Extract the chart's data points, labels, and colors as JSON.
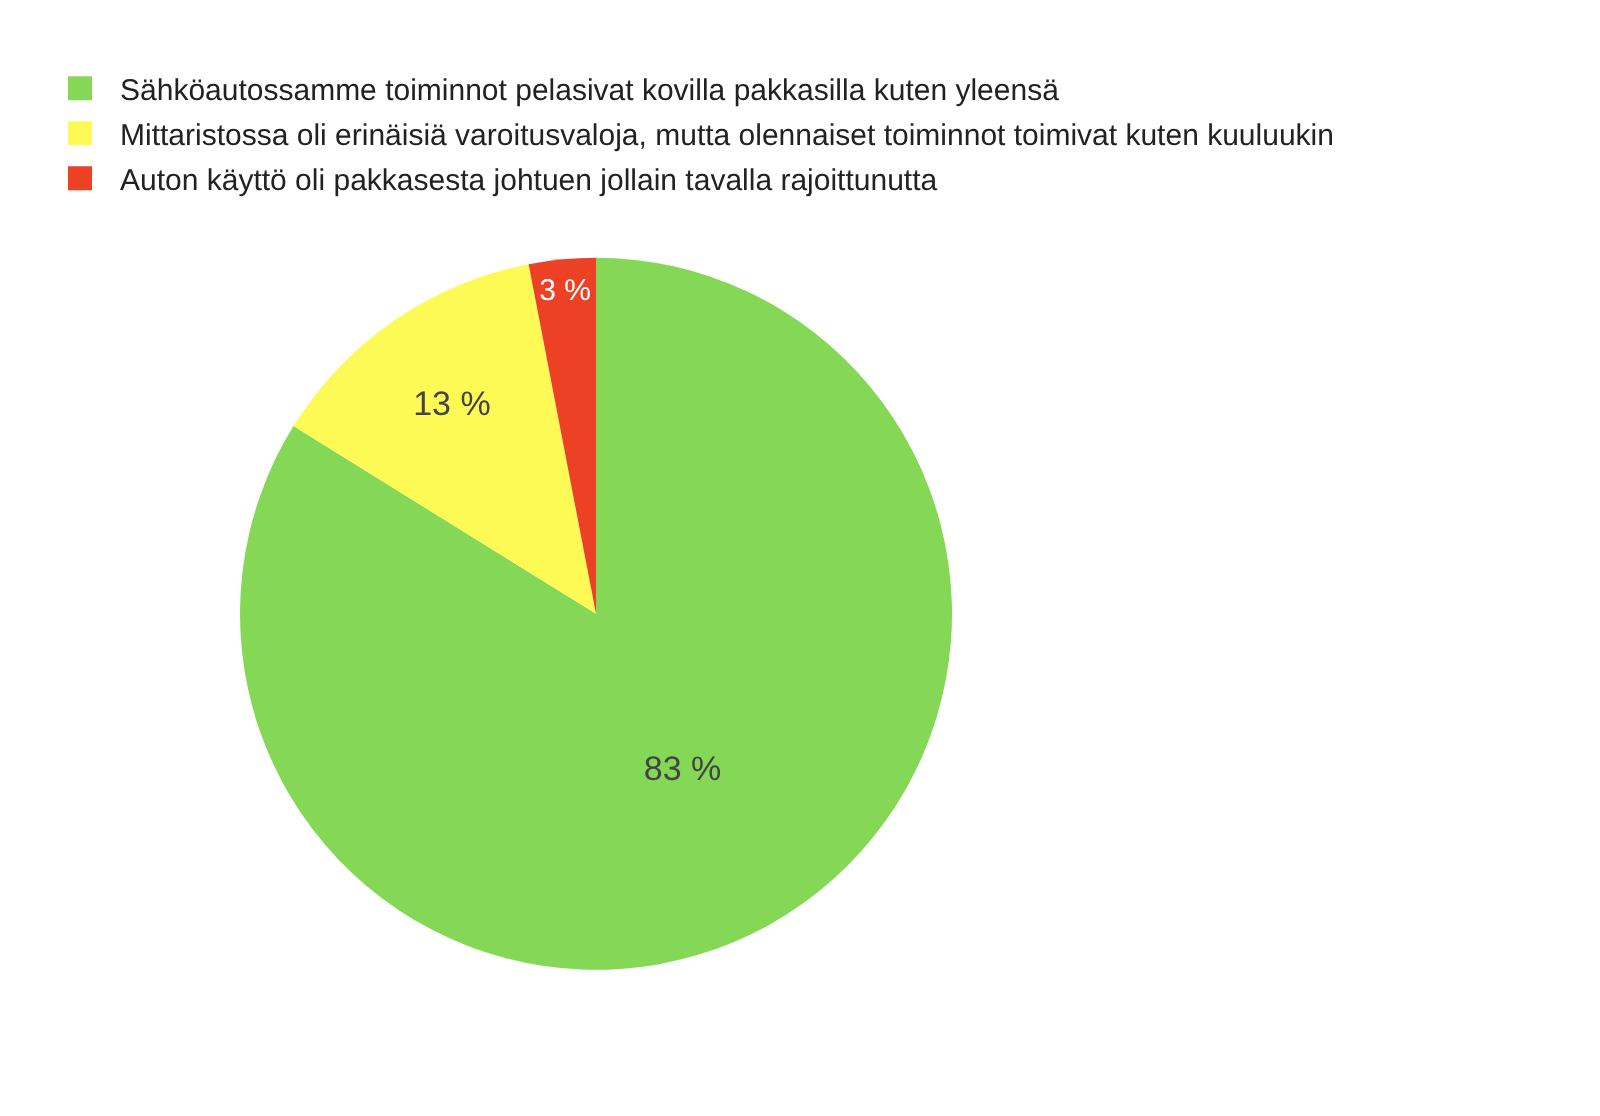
{
  "chart_data": {
    "type": "pie",
    "categories": [
      "Sähköautossamme toiminnot pelasivat kovilla pakkasilla kuten yleensä",
      "Mittaristossa oli erinäisiä varoitusvaloja, mutta olennaiset toiminnot toimivat kuten kuuluukin",
      "Auton käyttö oli pakkasesta johtuen jollain tavalla rajoittunutta"
    ],
    "values": [
      83,
      13,
      3
    ],
    "value_labels": [
      "83 %",
      "13 %",
      "3 %"
    ],
    "colors": [
      "#84d856",
      "#fdfa56",
      "#ec4125"
    ],
    "legend": "top"
  }
}
